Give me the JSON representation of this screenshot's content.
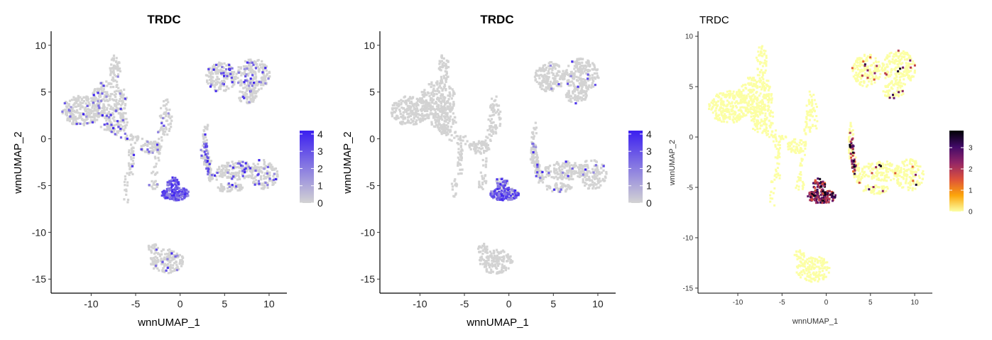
{
  "chart_data": [
    {
      "type": "scatter",
      "title": "TRDC",
      "xlabel": "wnnUMAP_1",
      "ylabel": "wnnUMAP_2",
      "xlim": [
        -14.5,
        12
      ],
      "ylim": [
        -16.5,
        11.5
      ],
      "xticks": [
        -10,
        -5,
        0,
        5,
        10
      ],
      "yticks": [
        -15,
        -10,
        -5,
        0,
        5,
        10
      ],
      "legend": {
        "position": "right",
        "min": 0,
        "max": 4.2,
        "ticks": [
          0,
          1,
          2,
          3,
          4
        ],
        "colors": [
          "#d3d3d3",
          "#3b1ff0"
        ]
      },
      "highlight": {
        "background": 0.07,
        "t_cluster": 0.55,
        "gd_cluster": 0.96,
        "mid_bridge": 0.15,
        "br_cluster": 0.12,
        "top_right": 0.12
      },
      "seed": 11
    },
    {
      "type": "scatter",
      "title": "TRDC",
      "xlabel": "wnnUMAP_1",
      "ylabel": "wnnUMAP_2",
      "xlim": [
        -14.5,
        12
      ],
      "ylim": [
        -16.5,
        11.5
      ],
      "xticks": [
        -10,
        -5,
        0,
        5,
        10
      ],
      "yticks": [
        -15,
        -10,
        -5,
        0,
        5,
        10
      ],
      "legend": {
        "position": "right",
        "min": 0,
        "max": 4.2,
        "ticks": [
          0,
          1,
          2,
          3,
          4
        ],
        "colors": [
          "#d3d3d3",
          "#3b1ff0"
        ]
      },
      "highlight": {
        "background": 0.0,
        "t_cluster": 0.22,
        "gd_cluster": 0.7,
        "mid_bridge": 0.03,
        "br_cluster": 0.03,
        "top_right": 0.03
      },
      "seed": 23
    },
    {
      "type": "scatter",
      "title": "TRDC",
      "xlabel": "wnnUMAP_1",
      "ylabel": "wnnUMAP_2",
      "xlim": [
        -14.5,
        12
      ],
      "ylim": [
        -15.5,
        10.5
      ],
      "xticks": [
        -10,
        -5,
        0,
        5,
        10
      ],
      "yticks": [
        -15,
        -10,
        -5,
        0,
        5,
        10
      ],
      "legend": {
        "position": "right",
        "min": 0,
        "max": 3.8,
        "ticks": [
          0,
          1,
          2,
          3
        ],
        "colors": [
          "#fcffa4",
          "#fca50a",
          "#dd513a",
          "#932667",
          "#420a68",
          "#000004"
        ]
      },
      "highlight": {
        "background": 0.0,
        "t_cluster": 0.85,
        "gd_cluster": 0.95,
        "mid_bridge": 0.04,
        "br_cluster": 0.03,
        "top_right": 0.05
      },
      "seed": 37
    }
  ]
}
